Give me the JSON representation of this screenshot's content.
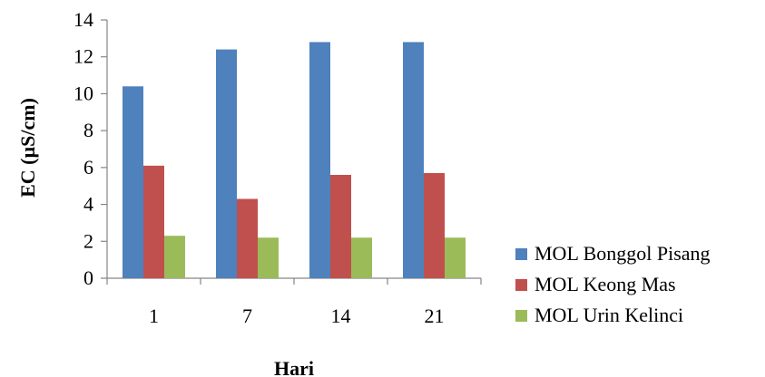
{
  "chart_data": {
    "type": "bar",
    "categories": [
      "1",
      "7",
      "14",
      "21"
    ],
    "series": [
      {
        "name": "MOL Bonggol Pisang",
        "values": [
          10.4,
          12.4,
          12.8,
          12.8
        ],
        "color": "#4f81bd"
      },
      {
        "name": "MOL Keong Mas",
        "values": [
          6.1,
          4.3,
          5.6,
          5.7
        ],
        "color": "#c0504d"
      },
      {
        "name": "MOL Urin Kelinci",
        "values": [
          2.3,
          2.2,
          2.2,
          2.2
        ],
        "color": "#9bbb59"
      }
    ],
    "xlabel": "Hari",
    "ylabel": "EC (µS/cm)",
    "ylim": [
      0,
      14
    ],
    "yticks": [
      0,
      2,
      4,
      6,
      8,
      10,
      12,
      14
    ],
    "grid": false,
    "legend_position": "right-bottom"
  }
}
